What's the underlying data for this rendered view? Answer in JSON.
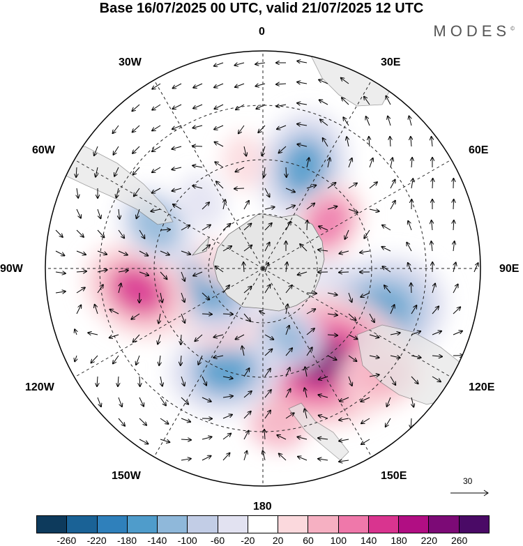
{
  "title": "Base 16/07/2025 00 UTC, valid 21/07/2025 12 UTC",
  "logo": "MODES",
  "logo_mark": "©",
  "longitude_labels": {
    "top": "0",
    "top_right": "30E",
    "right_upper": "60E",
    "right": "90E",
    "right_lower": "120E",
    "bottom_right": "150E",
    "bottom": "180",
    "bottom_left": "150W",
    "left_lower": "120W",
    "left": "90W",
    "left_upper": "60W",
    "top_left": "30W"
  },
  "vector_scale_label": "30",
  "colorbar": {
    "ticks": [
      "-260",
      "-220",
      "-180",
      "-140",
      "-100",
      "-60",
      "-20",
      "20",
      "60",
      "100",
      "140",
      "180",
      "220",
      "260"
    ],
    "colors": [
      "#0d3a5c",
      "#1a6296",
      "#2f80bb",
      "#4f9ccb",
      "#8fb8da",
      "#c2cde6",
      "#e2e2f1",
      "#ffffff",
      "#fbd9dd",
      "#f6b0c2",
      "#ef78aa",
      "#d9348f",
      "#b10e83",
      "#7c0a76",
      "#4a0a66"
    ]
  },
  "anomaly_centers": [
    {
      "lon": 22,
      "colat_deg": 30,
      "value": -150
    },
    {
      "lon": 55,
      "colat_deg": 22,
      "value": 110
    },
    {
      "lon": 102,
      "colat_deg": 18,
      "value": -40
    },
    {
      "lon": 112,
      "colat_deg": 34,
      "value": -180
    },
    {
      "lon": 148,
      "colat_deg": 30,
      "value": 230
    },
    {
      "lon": 132,
      "colat_deg": 44,
      "value": 90
    },
    {
      "lon": 165,
      "colat_deg": 20,
      "value": -110
    },
    {
      "lon": -160,
      "colat_deg": 30,
      "value": -150
    },
    {
      "lon": -140,
      "colat_deg": 18,
      "value": 90
    },
    {
      "lon": -110,
      "colat_deg": 16,
      "value": -150
    },
    {
      "lon": -100,
      "colat_deg": 35,
      "value": 150
    },
    {
      "lon": -68,
      "colat_deg": 32,
      "value": -110
    },
    {
      "lon": -42,
      "colat_deg": 25,
      "value": -40
    },
    {
      "lon": -10,
      "colat_deg": 30,
      "value": 40
    },
    {
      "lon": 175,
      "colat_deg": 44,
      "value": 60
    },
    {
      "lon": -85,
      "colat_deg": 12,
      "value": 50
    }
  ]
}
